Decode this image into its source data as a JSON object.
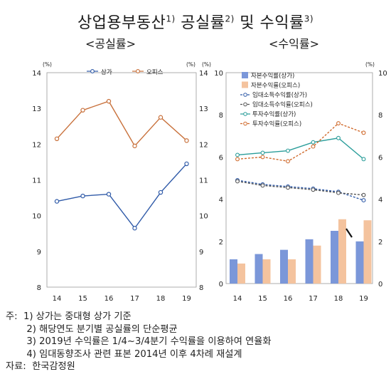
{
  "title": "상업용부동산",
  "title_sup1": "1)",
  "title_mid": " 공실률",
  "title_sup2": "2)",
  "title_and": " 및 수익률",
  "title_sup3": "3)",
  "subtitle_left": "<공실률>",
  "subtitle_right": "<수익률>",
  "notes": [
    "주:  1) 상가는 중대형 상가 기준",
    "       2) 해당연도 분기별 공실률의 단순평균",
    "       3) 2019년 수익률은 1/4~3/4분기 수익률을 이용하여 연율화",
    "       4) 임대동향조사 관련 표본 2014년 이후 4차례 재설계",
    "자료:  한국감정원"
  ],
  "chart_data": [
    {
      "type": "line",
      "name": "vacancy",
      "x": [
        "14",
        "15",
        "16",
        "17",
        "18",
        "19"
      ],
      "unit_left": "(%)",
      "unit_right": "(%)",
      "ylim": [
        8,
        14
      ],
      "yticks": [
        8,
        9,
        10,
        11,
        12,
        13,
        14
      ],
      "series": [
        {
          "name": "상가",
          "color": "#2f5aa8",
          "values": [
            10.4,
            10.55,
            10.6,
            9.65,
            10.65,
            11.45
          ]
        },
        {
          "name": "오피스",
          "color": "#c8703a",
          "values": [
            12.15,
            12.95,
            13.2,
            11.95,
            12.75,
            12.1
          ]
        }
      ]
    },
    {
      "type": "bar",
      "name": "returns",
      "x": [
        "14",
        "15",
        "16",
        "17",
        "18",
        "19"
      ],
      "unit_left": "(%)",
      "unit_right": "(%)",
      "ylim": [
        0,
        10
      ],
      "yticks": [
        0,
        2,
        4,
        6,
        8,
        10
      ],
      "bar_series": [
        {
          "name": "자본수익률(상가)",
          "color": "#7b97d9",
          "values": [
            1.15,
            1.4,
            1.6,
            2.1,
            2.5,
            2.0
          ]
        },
        {
          "name": "자본수익률(오피스)",
          "color": "#f4c39e",
          "values": [
            0.95,
            1.15,
            1.15,
            1.8,
            3.05,
            3.0
          ]
        }
      ],
      "line_series": [
        {
          "name": "임대소득수익률(상가)",
          "color": "#2f5aa8",
          "marker": "circle",
          "dash": "3,2",
          "values": [
            4.9,
            4.7,
            4.6,
            4.5,
            4.35,
            3.95
          ]
        },
        {
          "name": "임대소득수익률(오피스)",
          "color": "#555555",
          "marker": "circle",
          "dash": "3,2",
          "values": [
            4.85,
            4.65,
            4.55,
            4.45,
            4.3,
            4.2
          ]
        },
        {
          "name": "투자수익률(상가)",
          "color": "#2a9d9a",
          "marker": "circle",
          "dash": "",
          "values": [
            6.1,
            6.2,
            6.3,
            6.7,
            6.9,
            5.9
          ]
        },
        {
          "name": "투자수익률(오피스)",
          "color": "#d06a2c",
          "marker": "circle",
          "dash": "3,2",
          "values": [
            5.9,
            6.0,
            5.8,
            6.5,
            7.6,
            7.15
          ]
        }
      ]
    }
  ]
}
